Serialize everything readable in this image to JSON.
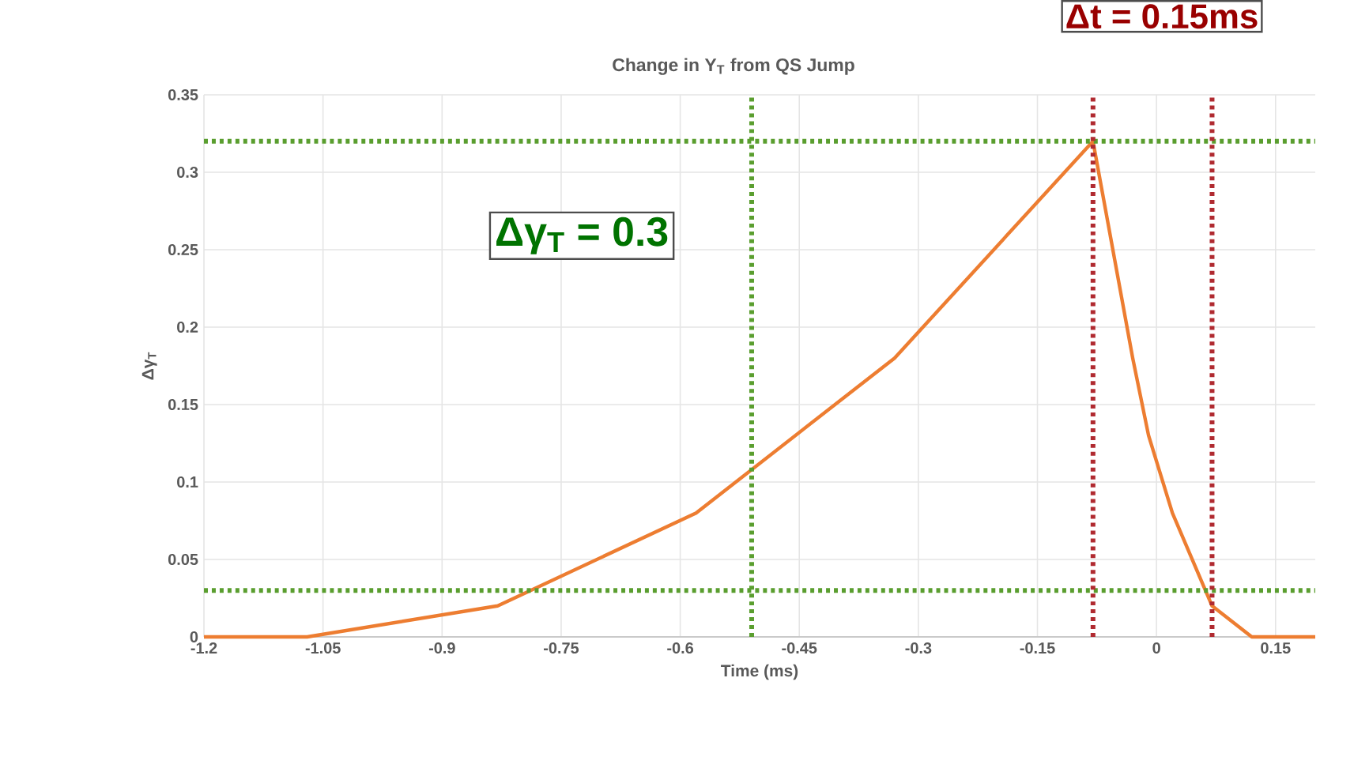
{
  "chart_data": {
    "type": "line",
    "title": "Change in Y$_{T}$ from QS Jump",
    "xlabel": "Time (ms)",
    "ylabel": "Δγ$_{T}$",
    "x": [
      -1.2,
      -1.07,
      -0.83,
      -0.58,
      -0.33,
      -0.08,
      -0.03,
      -0.01,
      0.02,
      0.07,
      0.12,
      0.2
    ],
    "series": [
      {
        "color": "#ed7d31",
        "values": [
          0,
          0,
          0.02,
          0.08,
          0.18,
          0.32,
          0.18,
          0.13,
          0.08,
          0.02,
          0,
          0
        ]
      }
    ],
    "xlim": [
      -1.2,
      0.2
    ],
    "xticks": [
      -1.2,
      -1.05,
      -0.9,
      -0.75,
      -0.6,
      -0.45,
      -0.3,
      -0.15,
      0,
      0.15
    ],
    "ylim": [
      0,
      0.35
    ],
    "yticks": [
      0,
      0.05,
      0.1,
      0.15,
      0.2,
      0.25,
      0.3,
      0.35
    ],
    "grid": true,
    "marker": "none",
    "line_style": "solid",
    "ref_lines": [
      {
        "axis": "y",
        "value": 0.32,
        "color": "#5a9e2f",
        "line_style": "dotted"
      },
      {
        "axis": "y",
        "value": 0.03,
        "color": "#5a9e2f",
        "line_style": "dotted"
      },
      {
        "axis": "x",
        "value": -0.51,
        "color": "#5a9e2f",
        "line_style": "dotted"
      },
      {
        "axis": "x",
        "value": -0.08,
        "color": "#b02a30",
        "line_style": "dotted"
      },
      {
        "axis": "x",
        "value": 0.07,
        "color": "#b02a30",
        "line_style": "dotted"
      }
    ],
    "annotations": [
      "Δγ$_{T}$ = 0.3",
      "Δt = 0.15ms"
    ]
  }
}
